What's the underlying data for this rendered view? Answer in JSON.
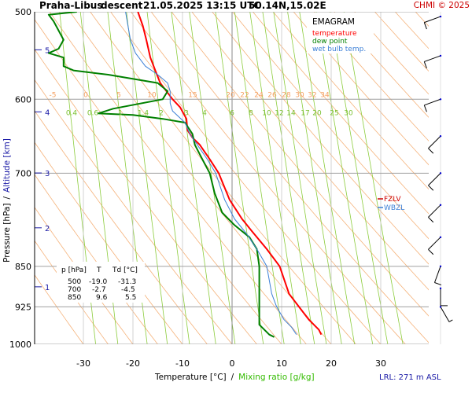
{
  "header": {
    "station": "Praha-Libus",
    "mode": "descent",
    "datetime": "21.05.2025 13:15 UTC",
    "coords": "50.14N,15.02E",
    "copyright": "CHMI © 2025"
  },
  "legend": {
    "title": "EMAGRAM",
    "items": [
      {
        "label": "temperature",
        "color": "#ff0000"
      },
      {
        "label": "dew point",
        "color": "#008000"
      },
      {
        "label": "wet bulb temp.",
        "color": "#3b7fd6"
      }
    ]
  },
  "levels_legend": {
    "items": [
      {
        "label": "FZLV",
        "color": "#cc0000"
      },
      {
        "label": "WBZL",
        "color": "#3b7fd6"
      }
    ]
  },
  "table": {
    "headers": [
      "p [hPa]",
      "T",
      "Td [°C]"
    ],
    "rows": [
      [
        "500",
        "-19.0",
        "-31.3"
      ],
      [
        "700",
        "-2.7",
        "-4.5"
      ],
      [
        "850",
        "9.6",
        "5.5"
      ]
    ]
  },
  "axes": {
    "ylabel_pressure": "Pressure [hPa]",
    "ylabel_sep": "/",
    "ylabel_altitude": "Altitude [km]",
    "xlabel_temp": "Temperature [°C]",
    "xlabel_sep": "/",
    "xlabel_mix": "Mixing ratio [g/kg]",
    "lrl": "LRL: 271 m ASL"
  },
  "chart_data": {
    "type": "line",
    "x_scale": "temperature (°C)",
    "y_scale": "log pressure (hPa)",
    "xlim": [
      -40,
      40
    ],
    "ylim": [
      1000,
      500
    ],
    "pressure_ticks": [
      500,
      600,
      700,
      850,
      925,
      1000
    ],
    "temperature_ticks": [
      -30,
      -20,
      -10,
      0,
      10,
      20,
      30
    ],
    "altitude_ticks": [
      {
        "label": "1",
        "p": 890
      },
      {
        "label": "2",
        "p": 787
      },
      {
        "label": "3",
        "p": 702
      },
      {
        "label": "4",
        "p": 618
      },
      {
        "label": "5",
        "p": 543
      }
    ],
    "dry_adiabat_labels": [
      "-5",
      "0",
      "5",
      "10",
      "15",
      "20",
      "22",
      "24",
      "26",
      "28",
      "30",
      "32",
      "34"
    ],
    "mixing_ratio_labels": [
      "0.4",
      "0.6",
      "1",
      "1.4",
      "2",
      "3",
      "4",
      "6",
      "8",
      "10",
      "12",
      "14",
      "17",
      "20",
      "25",
      "30"
    ],
    "series": [
      {
        "name": "temperature",
        "color": "#ff0000",
        "points": [
          [
            18.0,
            980
          ],
          [
            17.5,
            970
          ],
          [
            15.5,
            950
          ],
          [
            13.5,
            925
          ],
          [
            11.5,
            900
          ],
          [
            9.6,
            850
          ],
          [
            7,
            820
          ],
          [
            4,
            790
          ],
          [
            2,
            770
          ],
          [
            -0.5,
            740
          ],
          [
            -2.7,
            700
          ],
          [
            -4.5,
            680
          ],
          [
            -6.5,
            660
          ],
          [
            -8,
            650
          ],
          [
            -9,
            640
          ],
          [
            -9.2,
            625
          ],
          [
            -10.5,
            610
          ],
          [
            -12,
            600
          ],
          [
            -14.5,
            580
          ],
          [
            -15.5,
            565
          ],
          [
            -16.5,
            550
          ],
          [
            -17.3,
            530
          ],
          [
            -18,
            515
          ],
          [
            -19.0,
            500
          ]
        ]
      },
      {
        "name": "dew point",
        "color": "#008000",
        "points": [
          [
            8.5,
            985
          ],
          [
            7.5,
            980
          ],
          [
            5.5,
            960
          ],
          [
            5.5,
            925
          ],
          [
            5.5,
            900
          ],
          [
            5.5,
            850
          ],
          [
            5.0,
            820
          ],
          [
            3.5,
            800
          ],
          [
            0.5,
            780
          ],
          [
            -2,
            760
          ],
          [
            -3.5,
            730
          ],
          [
            -4.5,
            700
          ],
          [
            -6,
            680
          ],
          [
            -7.5,
            660
          ],
          [
            -8,
            645
          ],
          [
            -9.5,
            630
          ],
          [
            -14,
            625
          ],
          [
            -20,
            620
          ],
          [
            -27,
            618
          ],
          [
            -24,
            612
          ],
          [
            -14,
            600
          ],
          [
            -13,
            590
          ],
          [
            -15,
            580
          ],
          [
            -25,
            570
          ],
          [
            -32,
            565
          ],
          [
            -34,
            560
          ],
          [
            -34,
            550
          ],
          [
            -37,
            545
          ],
          [
            -35,
            540
          ],
          [
            -34,
            530
          ],
          [
            -36,
            510
          ],
          [
            -37,
            503
          ],
          [
            -31.3,
            500
          ]
        ]
      },
      {
        "name": "wet bulb temp.",
        "color": "#3b7fd6",
        "points": [
          [
            13,
            980
          ],
          [
            12,
            965
          ],
          [
            10.5,
            950
          ],
          [
            9,
            925
          ],
          [
            8,
            900
          ],
          [
            7.0,
            850
          ],
          [
            5,
            820
          ],
          [
            3,
            795
          ],
          [
            0.5,
            770
          ],
          [
            -1.5,
            740
          ],
          [
            -3.3,
            700
          ],
          [
            -5,
            680
          ],
          [
            -7,
            660
          ],
          [
            -8.5,
            645
          ],
          [
            -9.5,
            630
          ],
          [
            -12,
            615
          ],
          [
            -12.5,
            605
          ],
          [
            -12.5,
            590
          ],
          [
            -13,
            580
          ],
          [
            -15,
            570
          ],
          [
            -17.5,
            560
          ],
          [
            -19.5,
            545
          ],
          [
            -20.5,
            530
          ],
          [
            -21,
            515
          ],
          [
            -21.5,
            500
          ]
        ]
      }
    ],
    "wind_barbs": [
      {
        "p": 505,
        "dir": 250,
        "kt": 10
      },
      {
        "p": 548,
        "dir": 250,
        "kt": 10
      },
      {
        "p": 600,
        "dir": 250,
        "kt": 10
      },
      {
        "p": 648,
        "dir": 225,
        "kt": 10
      },
      {
        "p": 700,
        "dir": 225,
        "kt": 10
      },
      {
        "p": 748,
        "dir": 225,
        "kt": 10
      },
      {
        "p": 800,
        "dir": 225,
        "kt": 10
      },
      {
        "p": 850,
        "dir": 200,
        "kt": 10
      },
      {
        "p": 890,
        "dir": 180,
        "kt": 10
      },
      {
        "p": 925,
        "dir": 150,
        "kt": 5
      }
    ]
  }
}
